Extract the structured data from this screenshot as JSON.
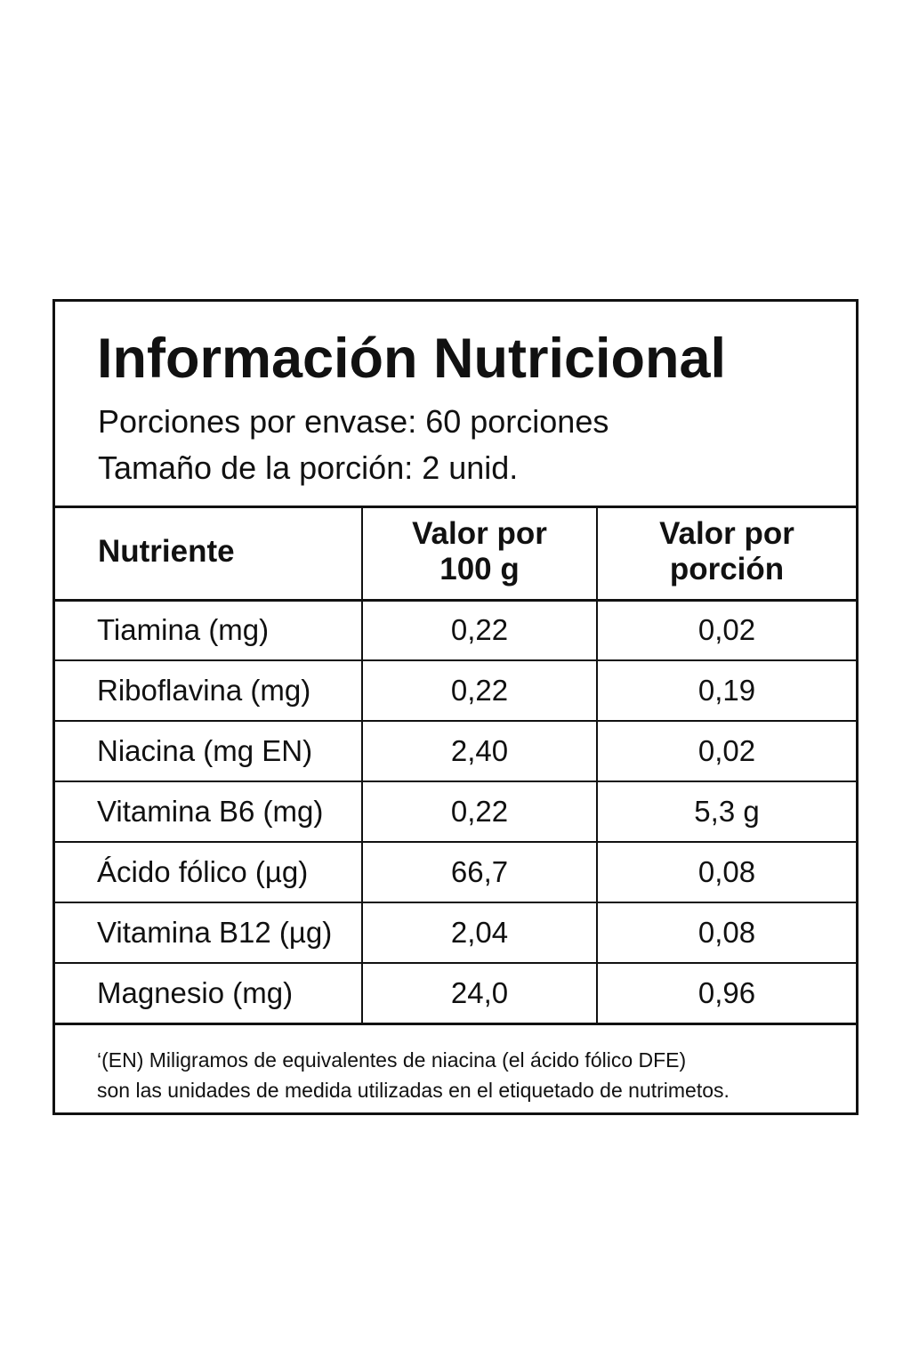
{
  "label": {
    "title": "Información Nutricional",
    "servings_per_container": "Porciones por envase: 60 porciones",
    "serving_size": "Tamaño de la porción: 2 unid."
  },
  "table": {
    "headers": {
      "nutrient": "Nutriente",
      "per_100g_line1": "Valor por",
      "per_100g_line2": "100 g",
      "per_serving_line1": "Valor por",
      "per_serving_line2": "porción"
    },
    "rows": [
      {
        "nutrient": "Tiamina (mg)",
        "per_100g": "0,22",
        "per_serving": "0,02"
      },
      {
        "nutrient": "Riboflavina (mg)",
        "per_100g": "0,22",
        "per_serving": "0,19"
      },
      {
        "nutrient": "Niacina (mg EN)",
        "per_100g": "2,40",
        "per_serving": "0,02"
      },
      {
        "nutrient": "Vitamina B6 (mg)",
        "per_100g": "0,22",
        "per_serving": "5,3 g"
      },
      {
        "nutrient": "Ácido fólico (µg)",
        "per_100g": "66,7",
        "per_serving": "0,08"
      },
      {
        "nutrient": "Vitamina B12 (µg)",
        "per_100g": "2,04",
        "per_serving": "0,08"
      },
      {
        "nutrient": "Magnesio (mg)",
        "per_100g": "24,0",
        "per_serving": "0,96"
      }
    ]
  },
  "footnote": {
    "line1": "‘(EN) Miligramos de equivalentes de niacina (el ácido fólico DFE)",
    "line2": "son las unidades de medida utilizadas en el etiquetado de nutrimetos."
  }
}
